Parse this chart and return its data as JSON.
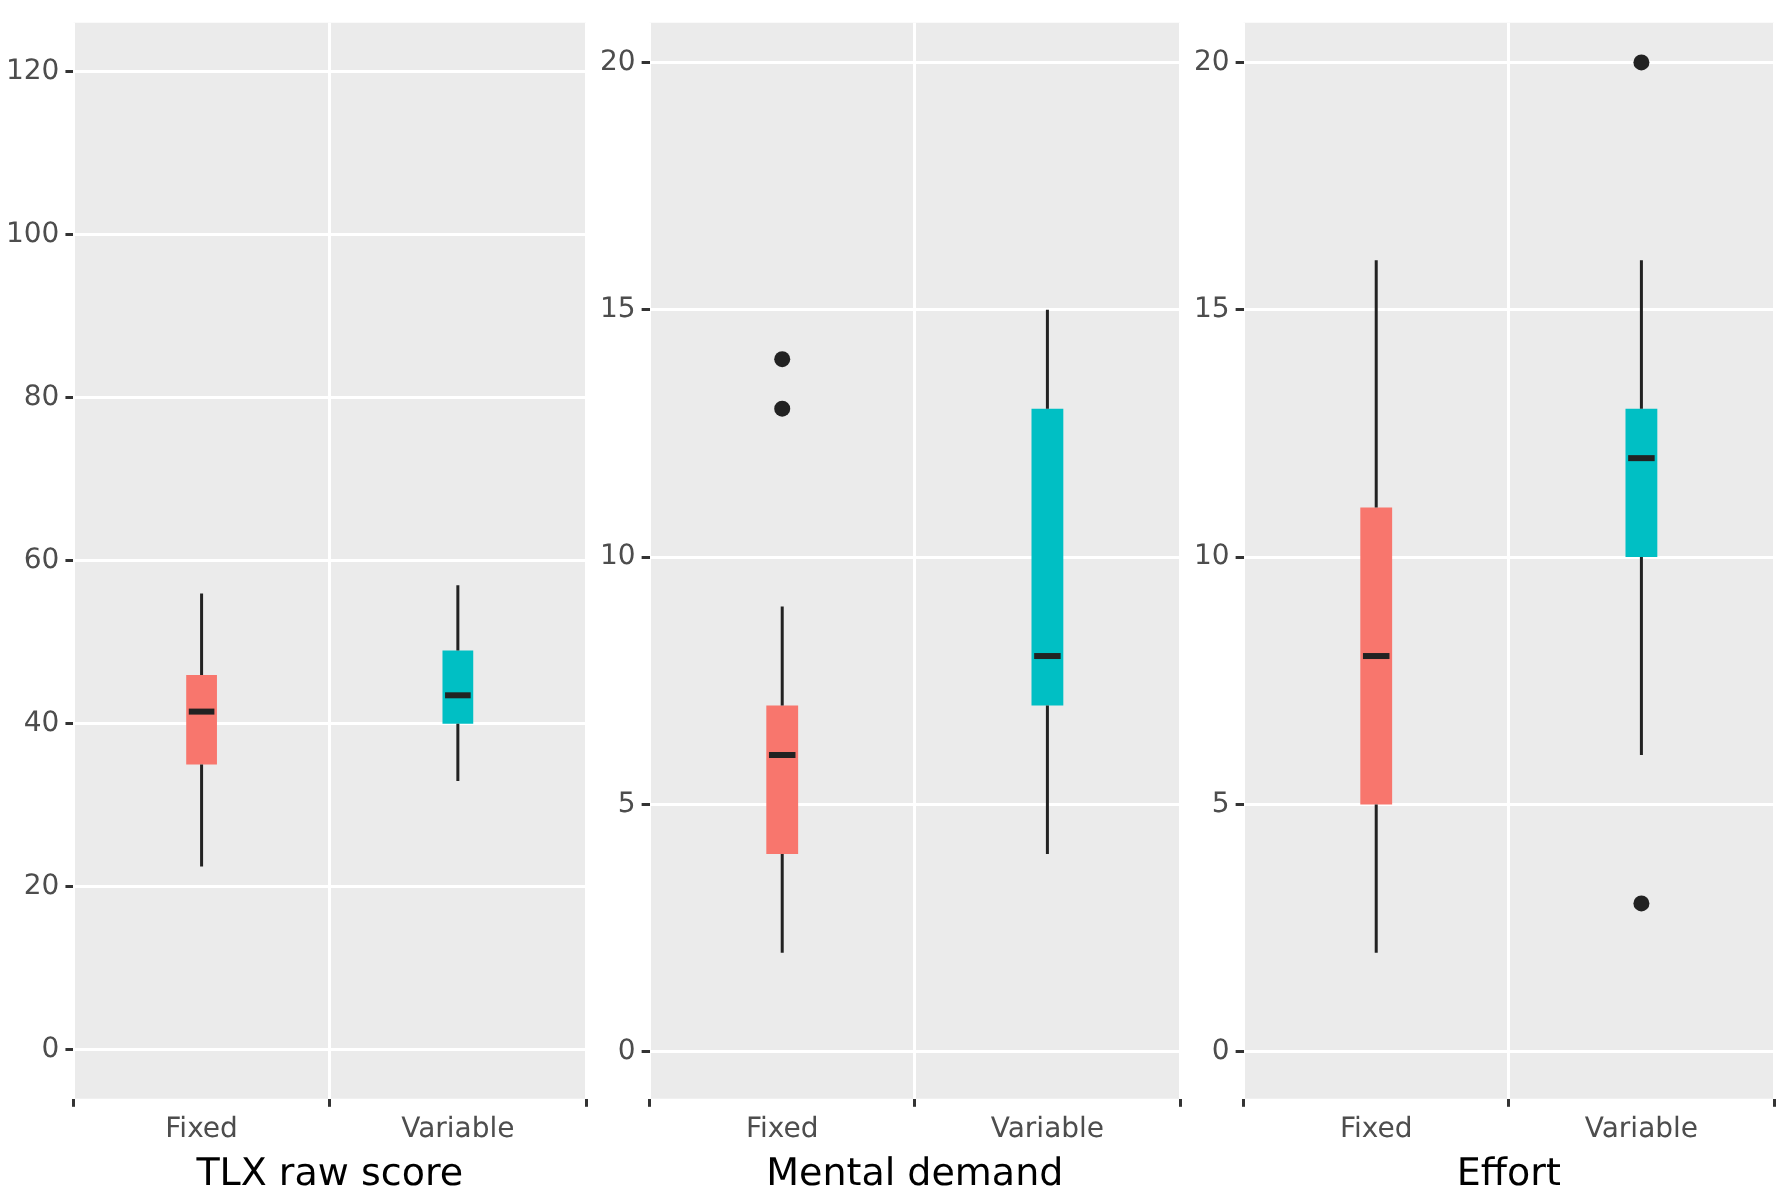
{
  "chart_data": [
    {
      "type": "box",
      "xlabel": "TLX raw score",
      "categories": [
        "Fixed",
        "Variable"
      ],
      "colors": [
        "#f8766d",
        "#00bfc4"
      ],
      "ylim": [
        -6,
        126
      ],
      "yticks": [
        0,
        20,
        40,
        60,
        80,
        100,
        120
      ],
      "grid": true,
      "boxes": [
        {
          "low": 22.5,
          "q1": 35,
          "median": 41.5,
          "q3": 46,
          "high": 56
        },
        {
          "low": 33,
          "q1": 40,
          "median": 43.5,
          "q3": 49,
          "high": 57
        }
      ]
    },
    {
      "type": "box",
      "xlabel": "Mental demand",
      "categories": [
        "Fixed",
        "Variable"
      ],
      "colors": [
        "#f8766d",
        "#00bfc4"
      ],
      "ylim": [
        -0.95,
        20.8
      ],
      "yticks": [
        0,
        5,
        10,
        15,
        20
      ],
      "grid": true,
      "boxes": [
        {
          "low": 2,
          "q1": 4,
          "median": 6,
          "q3": 7,
          "high": 9,
          "outliers": [
            13,
            14
          ]
        },
        {
          "low": 4,
          "q1": 7,
          "median": 8,
          "q3": 13,
          "high": 15
        }
      ]
    },
    {
      "type": "box",
      "xlabel": "Effort",
      "categories": [
        "Fixed",
        "Variable"
      ],
      "colors": [
        "#f8766d",
        "#00bfc4"
      ],
      "ylim": [
        -0.95,
        20.8
      ],
      "yticks": [
        0,
        5,
        10,
        15,
        20
      ],
      "grid": true,
      "boxes": [
        {
          "low": 2,
          "q1": 5,
          "median": 8,
          "q3": 11,
          "high": 16
        },
        {
          "low": 6,
          "q1": 10,
          "median": 12,
          "q3": 13,
          "high": 16,
          "outliers": [
            3,
            20
          ]
        }
      ]
    }
  ]
}
